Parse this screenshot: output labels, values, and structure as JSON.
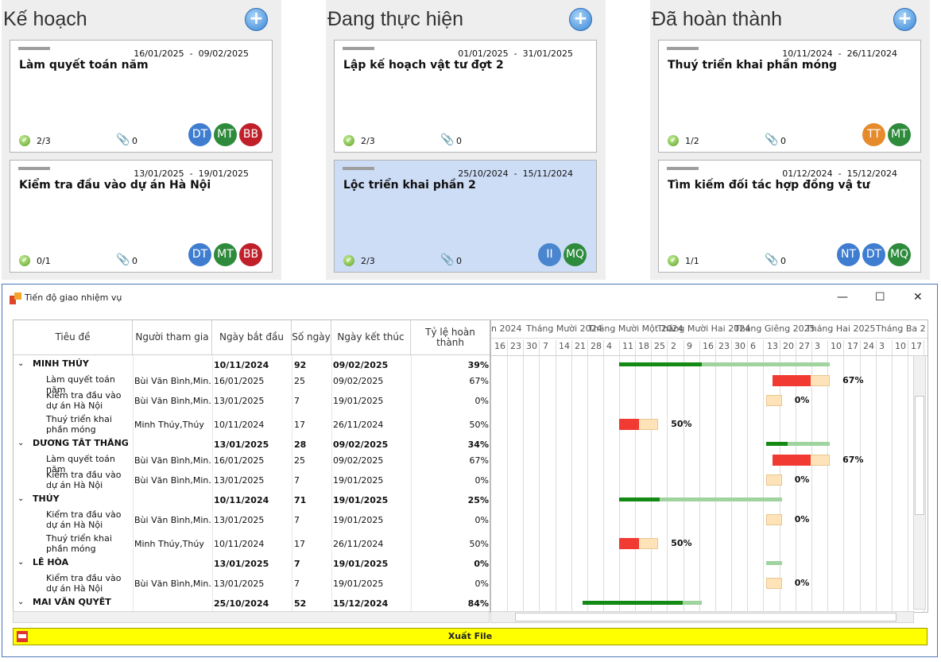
{
  "columns": [
    {
      "title": "Kế hoạch",
      "cards": [
        {
          "dates": "16/01/2025  -  09/02/2025",
          "title": "Làm quyết toán năm",
          "checklist": "2/3",
          "attachments": "0",
          "avatars": [
            {
              "initials": "DT",
              "color": "#3f7dd1"
            },
            {
              "initials": "MT",
              "color": "#2e8b3c"
            },
            {
              "initials": "BB",
              "color": "#c0202a"
            }
          ]
        },
        {
          "dates": "13/01/2025  -  19/01/2025",
          "title": "Kiểm tra đầu vào dự án Hà Nội",
          "checklist": "0/1",
          "attachments": "0",
          "avatars": [
            {
              "initials": "DT",
              "color": "#3f7dd1"
            },
            {
              "initials": "MT",
              "color": "#2e8b3c"
            },
            {
              "initials": "BB",
              "color": "#c0202a"
            }
          ]
        }
      ]
    },
    {
      "title": "Đang thực hiện",
      "cards": [
        {
          "dates": "01/01/2025  -  31/01/2025",
          "title": "Lập kế hoạch vật tư đợt 2",
          "checklist": "2/3",
          "attachments": "0",
          "avatars": []
        },
        {
          "dates": "25/10/2024  -  15/11/2024",
          "title": "Lộc triển khai phần 2",
          "checklist": "2/3",
          "attachments": "0",
          "avatars": [
            {
              "initials": "II",
              "color": "#4a86cf"
            },
            {
              "initials": "MQ",
              "color": "#2e8b3c"
            }
          ]
        }
      ]
    },
    {
      "title": "Đã hoàn thành",
      "cards": [
        {
          "dates": "10/11/2024  -  26/11/2024",
          "title": "Thuý triển khai phần móng",
          "checklist": "1/2",
          "attachments": "0",
          "avatars": [
            {
              "initials": "TT",
              "color": "#e58b2b"
            },
            {
              "initials": "MT",
              "color": "#2e8b3c"
            }
          ]
        },
        {
          "dates": "01/12/2024  -  15/12/2024",
          "title": "Tìm kiếm đối tác hợp đồng vậ tư",
          "checklist": "1/1",
          "attachments": "0",
          "avatars": [
            {
              "initials": "NT",
              "color": "#3f7dd1"
            },
            {
              "initials": "DT",
              "color": "#3f7dd1"
            },
            {
              "initials": "MQ",
              "color": "#2e8b3c"
            }
          ]
        }
      ]
    }
  ],
  "window": {
    "title": "Tiến độ giao nhiệm vụ",
    "minimize": "—",
    "maximize": "☐",
    "close": "✕",
    "export_label": "Xuất File"
  },
  "grid": {
    "headers": [
      "Tiêu đề",
      "Người tham gia",
      "Ngày bắt đầu",
      "Số ngày",
      "Ngày kết thúc",
      "Tỷ lệ hoàn thành"
    ],
    "rows": [
      {
        "group": true,
        "title": "MINH THÚY",
        "people": "",
        "start": "10/11/2024",
        "days": "92",
        "end": "09/02/2025",
        "pct": "39%"
      },
      {
        "group": false,
        "title": "Làm quyết toán năm",
        "people": "Bùi Văn Bình,Min...",
        "start": "16/01/2025",
        "days": "25",
        "end": "09/02/2025",
        "pct": "67%"
      },
      {
        "group": false,
        "title": "Kiểm tra đầu vào dự án Hà Nội",
        "people": "Bùi Văn Bình,Min...",
        "start": "13/01/2025",
        "days": "7",
        "end": "19/01/2025",
        "pct": "0%"
      },
      {
        "group": false,
        "title": "Thuý triển khai phần móng",
        "people": "Minh Thúy,Thúy",
        "start": "10/11/2024",
        "days": "17",
        "end": "26/11/2024",
        "pct": "50%"
      },
      {
        "group": true,
        "title": "DƯƠNG TẤT THẮNG",
        "people": "",
        "start": "13/01/2025",
        "days": "28",
        "end": "09/02/2025",
        "pct": "34%"
      },
      {
        "group": false,
        "title": "Làm quyết toán năm",
        "people": "Bùi Văn Bình,Min...",
        "start": "16/01/2025",
        "days": "25",
        "end": "09/02/2025",
        "pct": "67%"
      },
      {
        "group": false,
        "title": "Kiểm tra đầu vào dự án Hà Nội",
        "people": "Bùi Văn Bình,Min...",
        "start": "13/01/2025",
        "days": "7",
        "end": "19/01/2025",
        "pct": "0%"
      },
      {
        "group": true,
        "title": "THÚY",
        "people": "",
        "start": "10/11/2024",
        "days": "71",
        "end": "19/01/2025",
        "pct": "25%"
      },
      {
        "group": false,
        "title": "Kiểm tra đầu vào dự án Hà Nội",
        "people": "Bùi Văn Bình,Min...",
        "start": "13/01/2025",
        "days": "7",
        "end": "19/01/2025",
        "pct": "0%"
      },
      {
        "group": false,
        "title": "Thuý triển khai phần móng",
        "people": "Minh Thúy,Thúy",
        "start": "10/11/2024",
        "days": "17",
        "end": "26/11/2024",
        "pct": "50%"
      },
      {
        "group": true,
        "title": "LÊ HÒA",
        "people": "",
        "start": "13/01/2025",
        "days": "7",
        "end": "19/01/2025",
        "pct": "0%"
      },
      {
        "group": false,
        "title": "Kiểm tra đầu vào dự án Hà Nội",
        "people": "Bùi Văn Bình,Min...",
        "start": "13/01/2025",
        "days": "7",
        "end": "19/01/2025",
        "pct": "0%"
      },
      {
        "group": true,
        "title": "MAI VĂN QUYẾT",
        "people": "",
        "start": "25/10/2024",
        "days": "52",
        "end": "15/12/2024",
        "pct": "84%"
      }
    ]
  },
  "gantt": {
    "months": [
      "n 2024",
      "Tháng Mười 2024",
      "Tháng Mười Một 2024",
      "Tháng Mười Hai 2024",
      "Tháng Giêng 2025",
      "Tháng Hai 2025",
      "Tháng Ba 2"
    ],
    "days": [
      "16",
      "23",
      "30",
      "7",
      "14",
      "21",
      "28",
      "4",
      "11",
      "18",
      "25",
      "2",
      "9",
      "16",
      "23",
      "30",
      "6",
      "13",
      "20",
      "27",
      "3",
      "10",
      "17",
      "24",
      "3",
      "10",
      "17"
    ]
  }
}
